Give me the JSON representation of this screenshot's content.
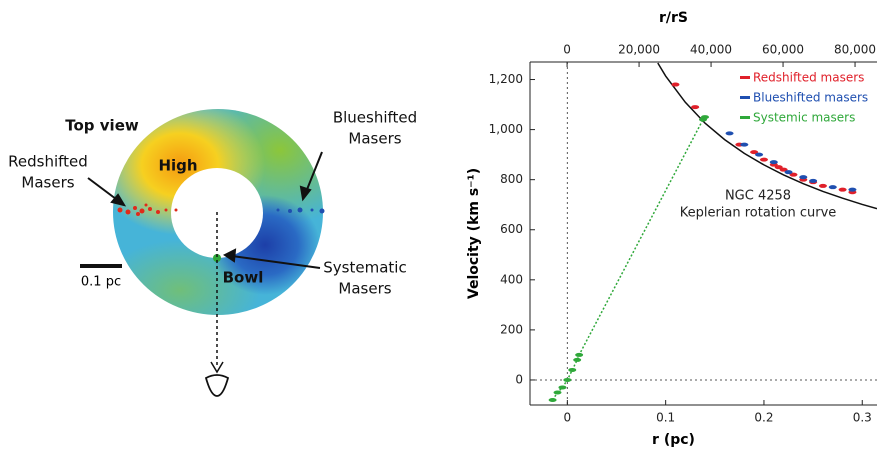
{
  "diagram": {
    "labels": {
      "top_view": "Top view",
      "red": [
        "Redshifted",
        "Masers"
      ],
      "high": "High",
      "blue": [
        "Blueshifted",
        "Masers"
      ],
      "bowl": "Bowl",
      "systematic": [
        "Systematic",
        "Masers"
      ],
      "scale": "0.1 pc"
    }
  },
  "chart_data": {
    "type": "scatter",
    "x_label": "r (pc)",
    "y_label": "Velocity (km s⁻¹)",
    "x2_label": "r/rS",
    "xlim": [
      -0.038,
      0.315
    ],
    "xticks": [
      0,
      0.1,
      0.2,
      0.3
    ],
    "ylim": [
      -100,
      1270
    ],
    "yticks": [
      0,
      200,
      400,
      600,
      800,
      {
        "value": 1000,
        "label": "1,000"
      },
      {
        "value": 1200,
        "label": "1,200"
      }
    ],
    "x2lim": [
      -10300,
      86100
    ],
    "x2ticks": [
      0,
      {
        "value": 20000,
        "label": "20,000"
      },
      {
        "value": 40000,
        "label": "40,000"
      },
      {
        "value": 60000,
        "label": "60,000"
      },
      {
        "value": 80000,
        "label": "80,000"
      }
    ],
    "zero_lines": true,
    "annotations": [
      "NGC 4258",
      "Keplerian rotation curve"
    ],
    "model_curve": {
      "color": "#111111",
      "x": [
        0.092,
        0.1,
        0.12,
        0.14,
        0.16,
        0.18,
        0.2,
        0.22,
        0.24,
        0.26,
        0.28,
        0.3,
        0.315
      ],
      "values": [
        1266,
        1214,
        1109,
        1026,
        960,
        905,
        859,
        819,
        784,
        753,
        726,
        701,
        684
      ]
    },
    "series": [
      {
        "name": "Redshifted masers",
        "color": "#e0202a",
        "x": [
          0.11,
          0.13,
          0.175,
          0.19,
          0.2,
          0.21,
          0.215,
          0.22,
          0.23,
          0.24,
          0.25,
          0.26,
          0.28,
          0.29
        ],
        "values": [
          1180,
          1090,
          940,
          910,
          880,
          860,
          850,
          840,
          820,
          800,
          790,
          775,
          760,
          750
        ]
      },
      {
        "name": "Blueshifted masers",
        "color": "#1f4fb0",
        "x": [
          0.165,
          0.18,
          0.195,
          0.21,
          0.225,
          0.24,
          0.25,
          0.27,
          0.29
        ],
        "values": [
          985,
          940,
          900,
          870,
          830,
          810,
          795,
          770,
          760
        ]
      },
      {
        "name": "Systemic masers",
        "color": "#2fa83a",
        "x": [
          -0.015,
          -0.01,
          -0.005,
          0,
          0.005,
          0.01,
          0.012,
          0.138,
          0.14
        ],
        "values": [
          -80,
          -50,
          -30,
          0,
          40,
          80,
          100,
          1040,
          1050
        ]
      }
    ]
  }
}
